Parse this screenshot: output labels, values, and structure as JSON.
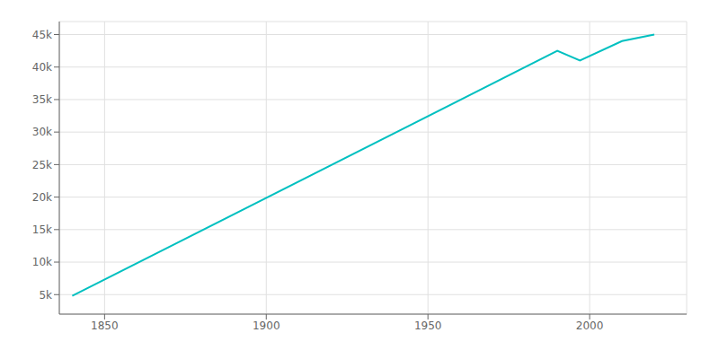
{
  "chart_data": {
    "type": "line",
    "x": [
      1840,
      1990,
      1997,
      2010,
      2020
    ],
    "values": [
      4800,
      42500,
      41000,
      44000,
      45000
    ],
    "color": "#00C0C0",
    "xlim": [
      1836,
      2030
    ],
    "ylim": [
      2000,
      47000
    ],
    "xticks": [
      1850,
      1900,
      1950,
      2000
    ],
    "yticks": [
      {
        "value": 5000,
        "label": "5k"
      },
      {
        "value": 10000,
        "label": "10k"
      },
      {
        "value": 15000,
        "label": "15k"
      },
      {
        "value": 20000,
        "label": "20k"
      },
      {
        "value": 25000,
        "label": "25k"
      },
      {
        "value": 30000,
        "label": "30k"
      },
      {
        "value": 35000,
        "label": "35k"
      },
      {
        "value": 40000,
        "label": "40k"
      },
      {
        "value": 45000,
        "label": "45k"
      }
    ],
    "grid": true
  }
}
